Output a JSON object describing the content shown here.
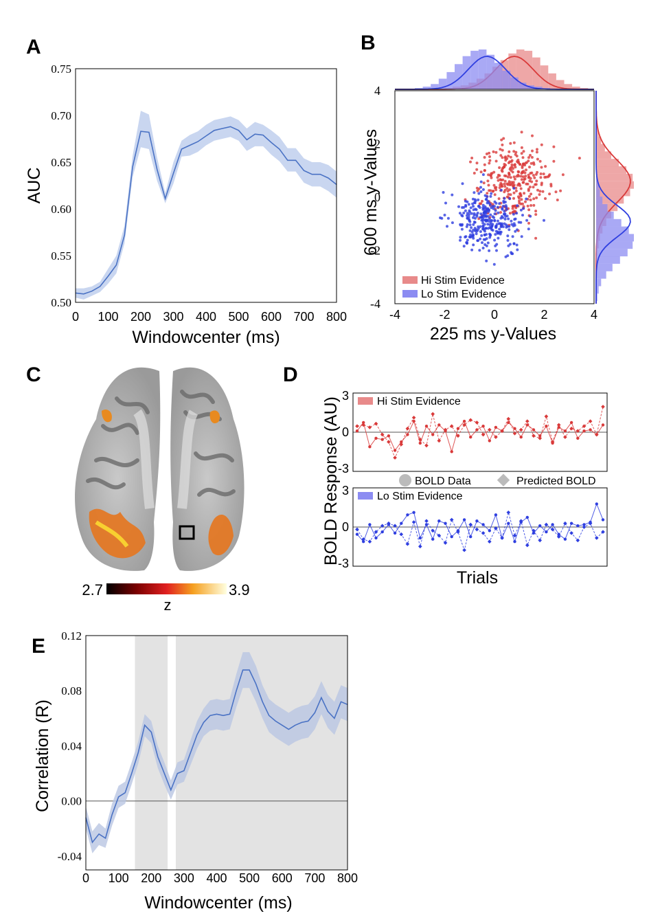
{
  "panels": {
    "a": "A",
    "b": "B",
    "c": "C",
    "d": "D",
    "e": "E"
  },
  "colors": {
    "auc_line": "#4a72c4",
    "auc_band": "#c9d6f0",
    "hi": "#d93a3a",
    "lo": "#2f3fe0",
    "hi_bar": "#e88a8a",
    "lo_bar": "#8c8cf2",
    "shade": "#e3e3e3",
    "corr_line": "#4a72c4",
    "corr_band": "#b9c6e2"
  },
  "chart_data": [
    {
      "panel": "A",
      "type": "line",
      "title": "",
      "xlabel": "Windowcenter (ms)",
      "ylabel": "AUC",
      "xlim": [
        0,
        800
      ],
      "ylim": [
        0.5,
        0.75
      ],
      "xticks": [
        0,
        100,
        200,
        300,
        400,
        500,
        600,
        700,
        800
      ],
      "yticks": [
        "0.50",
        "0.55",
        "0.60",
        "0.65",
        "0.70",
        "0.75"
      ],
      "x": [
        0,
        25,
        50,
        75,
        100,
        125,
        150,
        175,
        200,
        225,
        250,
        275,
        300,
        325,
        350,
        375,
        400,
        425,
        450,
        475,
        500,
        525,
        550,
        575,
        600,
        625,
        650,
        675,
        700,
        725,
        750,
        775,
        800
      ],
      "series": [
        {
          "values": [
            0.51,
            0.509,
            0.512,
            0.517,
            0.528,
            0.54,
            0.572,
            0.645,
            0.683,
            0.682,
            0.642,
            0.611,
            0.638,
            0.664,
            0.668,
            0.672,
            0.678,
            0.684,
            0.686,
            0.688,
            0.684,
            0.674,
            0.68,
            0.679,
            0.671,
            0.664,
            0.652,
            0.652,
            0.641,
            0.637,
            0.637,
            0.633,
            0.626
          ],
          "lower": [
            0.505,
            0.503,
            0.507,
            0.511,
            0.52,
            0.531,
            0.563,
            0.634,
            0.666,
            0.664,
            0.63,
            0.606,
            0.627,
            0.656,
            0.657,
            0.661,
            0.668,
            0.673,
            0.675,
            0.677,
            0.673,
            0.662,
            0.667,
            0.667,
            0.658,
            0.651,
            0.64,
            0.64,
            0.628,
            0.624,
            0.624,
            0.619,
            0.612
          ],
          "upper": [
            0.515,
            0.515,
            0.517,
            0.522,
            0.536,
            0.55,
            0.582,
            0.657,
            0.705,
            0.701,
            0.655,
            0.617,
            0.65,
            0.673,
            0.679,
            0.683,
            0.69,
            0.695,
            0.697,
            0.699,
            0.695,
            0.686,
            0.693,
            0.69,
            0.684,
            0.677,
            0.665,
            0.665,
            0.654,
            0.65,
            0.65,
            0.647,
            0.64
          ]
        }
      ],
      "grid": false
    },
    {
      "panel": "B",
      "type": "scatter",
      "xlabel": "225 ms y-Values",
      "ylabel": "600 ms y-Values",
      "xlim": [
        -4,
        4
      ],
      "ylim": [
        -4,
        4
      ],
      "xticks": [
        "-4",
        "-2",
        "0",
        "2",
        "4"
      ],
      "yticks": [
        "-4",
        "-2",
        "0",
        "2",
        "4"
      ],
      "series": [
        {
          "name": "Hi Stim Evidence",
          "mean": [
            0.8,
            0.6
          ],
          "sd": [
            0.75,
            0.8
          ],
          "hist": [
            1,
            2,
            3,
            5,
            8,
            12,
            17,
            22,
            27,
            30,
            29,
            24,
            18,
            12,
            7,
            4,
            2,
            1
          ]
        },
        {
          "name": "Lo Stim Evidence",
          "mean": [
            -0.3,
            -0.9
          ],
          "sd": [
            0.75,
            0.6
          ],
          "hist": [
            1,
            2,
            4,
            8,
            13,
            19,
            25,
            29,
            30,
            26,
            20,
            14,
            9,
            5,
            3,
            2,
            1,
            0
          ]
        }
      ],
      "legend": "bottom-left",
      "grid": false
    },
    {
      "panel": "C",
      "type": "heatmap",
      "colorbar": {
        "min": "2.7",
        "max": "3.9",
        "label": "z"
      }
    },
    {
      "panel": "D",
      "type": "line",
      "xlabel": "Trials",
      "ylabel": "BOLD Response (AU)",
      "ylim": [
        -3,
        3
      ],
      "yticks": [
        "-3",
        "0",
        "3"
      ],
      "legend_markers": {
        "data": "BOLD Data",
        "predicted": "Predicted BOLD"
      },
      "series": [
        {
          "name": "Hi Stim Evidence",
          "data": [
            0.1,
            0.8,
            -1.2,
            -0.5,
            -0.6,
            -0.3,
            -1.5,
            -0.8,
            -0.2,
            0.9,
            -0.9,
            0.5,
            -0.2,
            0.6,
            0.1,
            -1.6,
            0.3,
            0.9,
            -0.4,
            0.2,
            0.5,
            -0.7,
            0.4,
            0.1,
            0.8,
            0.3,
            -0.4,
            0.6,
            0.2,
            -0.3,
            0.5,
            -0.9,
            0.4,
            0.1,
            0.8,
            -0.5,
            0.1,
            0.2,
            -0.2,
            0.6
          ],
          "predicted": [
            0.5,
            0.6,
            0.4,
            0.7,
            -0.2,
            -0.8,
            -2.1,
            -1.0,
            0.3,
            1.2,
            -0.6,
            -1.1,
            1.5,
            -0.7,
            0.2,
            0.5,
            -0.3,
            0.6,
            1.0,
            0.8,
            -0.2,
            0.2,
            -0.4,
            0.1,
            1.1,
            -0.1,
            0.2,
            0.9,
            -0.3,
            -0.5,
            1.3,
            -0.8,
            0.6,
            -0.4,
            0.3,
            0.1,
            0.5,
            0.9,
            -0.2,
            2.1
          ]
        },
        {
          "name": "Lo Stim Evidence",
          "data": [
            -0.6,
            -1.2,
            0.2,
            -0.9,
            -0.4,
            0.2,
            -0.5,
            0.3,
            1.0,
            1.2,
            -0.9,
            0.2,
            -1.0,
            0.5,
            0.3,
            -0.8,
            -0.3,
            0.6,
            -0.8,
            0.5,
            0.2,
            -0.3,
            1.0,
            -0.9,
            0.3,
            -1.2,
            0.4,
            0.8,
            -0.5,
            0.1,
            -0.4,
            0.2,
            -0.6,
            -1.0,
            0.3,
            0.1,
            0.2,
            0.4,
            1.9,
            0.6
          ],
          "predicted": [
            -0.2,
            -1.0,
            -1.2,
            -0.4,
            0.1,
            0.3,
            0.1,
            -0.6,
            -1.4,
            0.4,
            -1.6,
            0.5,
            -0.3,
            -0.7,
            -1.3,
            0.6,
            -0.4,
            -1.9,
            0.2,
            -0.2,
            -0.5,
            -1.2,
            -0.1,
            -0.9,
            1.2,
            -0.7,
            0.5,
            -1.5,
            -0.3,
            -1.1,
            0.2,
            -0.2,
            -0.8,
            0.3,
            -0.5,
            -1.1,
            0.0,
            0.3,
            -0.9,
            -0.4
          ]
        }
      ],
      "grid": false
    },
    {
      "panel": "E",
      "type": "line",
      "xlabel": "Windowcenter (ms)",
      "ylabel": "Correlation (R)",
      "xlim": [
        0,
        800
      ],
      "ylim": [
        -0.05,
        0.12
      ],
      "xticks": [
        0,
        100,
        200,
        300,
        400,
        500,
        600,
        700,
        800
      ],
      "yticks": [
        "-0.04",
        "0.00",
        "0.04",
        "0.08",
        "0.12"
      ],
      "shaded_x": [
        [
          150,
          250
        ],
        [
          275,
          800
        ]
      ],
      "x": [
        0,
        20,
        40,
        60,
        80,
        100,
        120,
        140,
        160,
        180,
        200,
        220,
        240,
        260,
        280,
        300,
        320,
        340,
        360,
        380,
        400,
        420,
        440,
        460,
        480,
        500,
        520,
        540,
        560,
        580,
        600,
        620,
        640,
        660,
        680,
        700,
        720,
        740,
        760,
        780,
        800
      ],
      "series": [
        {
          "values": [
            -0.012,
            -0.03,
            -0.024,
            -0.027,
            -0.01,
            0.003,
            0.006,
            0.02,
            0.035,
            0.055,
            0.05,
            0.032,
            0.02,
            0.008,
            0.02,
            0.022,
            0.035,
            0.048,
            0.057,
            0.062,
            0.063,
            0.062,
            0.063,
            0.08,
            0.095,
            0.095,
            0.085,
            0.072,
            0.062,
            0.058,
            0.055,
            0.052,
            0.055,
            0.057,
            0.058,
            0.064,
            0.075,
            0.065,
            0.06,
            0.072,
            0.07
          ],
          "lower": [
            -0.02,
            -0.038,
            -0.032,
            -0.034,
            -0.018,
            -0.005,
            -0.002,
            0.012,
            0.027,
            0.047,
            0.042,
            0.024,
            0.012,
            0.001,
            0.012,
            0.014,
            0.026,
            0.038,
            0.047,
            0.051,
            0.052,
            0.051,
            0.052,
            0.068,
            0.082,
            0.082,
            0.072,
            0.06,
            0.05,
            0.046,
            0.043,
            0.04,
            0.043,
            0.045,
            0.046,
            0.052,
            0.063,
            0.053,
            0.048,
            0.06,
            0.058
          ],
          "upper": [
            -0.004,
            -0.022,
            -0.016,
            -0.02,
            -0.002,
            0.011,
            0.014,
            0.028,
            0.043,
            0.063,
            0.058,
            0.04,
            0.028,
            0.015,
            0.028,
            0.03,
            0.044,
            0.058,
            0.067,
            0.073,
            0.074,
            0.073,
            0.074,
            0.092,
            0.108,
            0.108,
            0.098,
            0.084,
            0.074,
            0.07,
            0.067,
            0.064,
            0.067,
            0.069,
            0.07,
            0.076,
            0.087,
            0.077,
            0.072,
            0.084,
            0.082
          ]
        }
      ],
      "grid": false
    }
  ]
}
